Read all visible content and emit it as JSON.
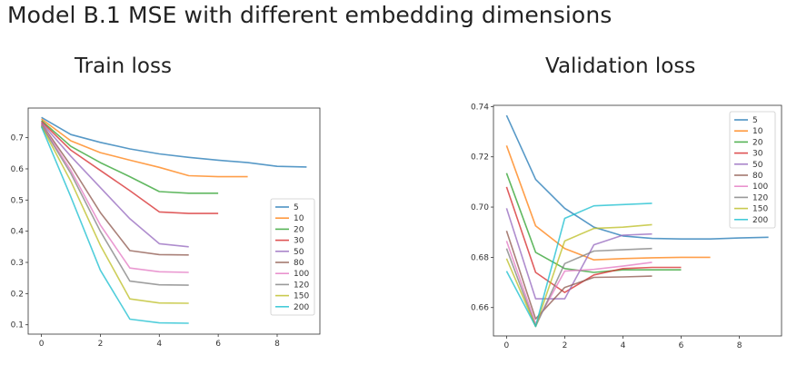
{
  "page_title": "Model B.1 MSE with different embedding dimensions",
  "chart_data": [
    {
      "type": "line",
      "title": "Train loss",
      "xlabel": "",
      "ylabel": "",
      "xlim": [
        -0.45,
        9.45
      ],
      "ylim": [
        0.07,
        0.795
      ],
      "xticks": [
        0,
        2,
        4,
        6,
        8
      ],
      "yticks": [
        0.1,
        0.2,
        0.3,
        0.4,
        0.5,
        0.6,
        0.7
      ],
      "legend_position": "lower-right",
      "series": [
        {
          "name": "5",
          "color": "#1f77b4",
          "x": [
            0,
            1,
            2,
            3,
            4,
            5,
            6,
            7,
            8,
            9
          ],
          "y": [
            0.765,
            0.71,
            0.685,
            0.664,
            0.648,
            0.637,
            0.628,
            0.62,
            0.608,
            0.606
          ]
        },
        {
          "name": "10",
          "color": "#ff7f0e",
          "x": [
            0,
            1,
            2,
            3,
            4,
            5,
            6,
            7
          ],
          "y": [
            0.76,
            0.69,
            0.652,
            0.628,
            0.605,
            0.578,
            0.575,
            0.575
          ]
        },
        {
          "name": "20",
          "color": "#2ca02c",
          "x": [
            0,
            1,
            2,
            3,
            4,
            5,
            6
          ],
          "y": [
            0.755,
            0.672,
            0.62,
            0.575,
            0.527,
            0.522,
            0.522
          ]
        },
        {
          "name": "30",
          "color": "#d62728",
          "x": [
            0,
            1,
            2,
            3,
            4,
            5,
            6
          ],
          "y": [
            0.752,
            0.66,
            0.595,
            0.53,
            0.462,
            0.457,
            0.457
          ]
        },
        {
          "name": "50",
          "color": "#9467bd",
          "x": [
            0,
            1,
            2,
            3,
            4,
            5
          ],
          "y": [
            0.748,
            0.64,
            0.54,
            0.44,
            0.36,
            0.35
          ]
        },
        {
          "name": "80",
          "color": "#8c564b",
          "x": [
            0,
            1,
            2,
            3,
            4,
            5
          ],
          "y": [
            0.745,
            0.61,
            0.46,
            0.338,
            0.325,
            0.324
          ]
        },
        {
          "name": "100",
          "color": "#e377c2",
          "x": [
            0,
            1,
            2,
            3,
            4,
            5
          ],
          "y": [
            0.742,
            0.595,
            0.42,
            0.282,
            0.27,
            0.268
          ]
        },
        {
          "name": "120",
          "color": "#7f7f7f",
          "x": [
            0,
            1,
            2,
            3,
            4,
            5
          ],
          "y": [
            0.74,
            0.585,
            0.4,
            0.24,
            0.228,
            0.227
          ]
        },
        {
          "name": "150",
          "color": "#bcbd22",
          "x": [
            0,
            1,
            2,
            3,
            4,
            5
          ],
          "y": [
            0.737,
            0.56,
            0.355,
            0.183,
            0.17,
            0.169
          ]
        },
        {
          "name": "200",
          "color": "#17becf",
          "x": [
            0,
            1,
            2,
            3,
            4,
            5
          ],
          "y": [
            0.735,
            0.51,
            0.275,
            0.118,
            0.106,
            0.105
          ]
        }
      ]
    },
    {
      "type": "line",
      "title": "Validation loss",
      "xlabel": "",
      "ylabel": "",
      "xlim": [
        -0.45,
        9.45
      ],
      "ylim": [
        0.6487,
        0.7405
      ],
      "xticks": [
        0,
        2,
        4,
        6,
        8
      ],
      "yticks": [
        0.66,
        0.68,
        0.7,
        0.72,
        0.74
      ],
      "legend_position": "upper-right",
      "series": [
        {
          "name": "5",
          "color": "#1f77b4",
          "x": [
            0,
            1,
            2,
            3,
            4,
            5,
            6,
            7,
            8,
            9
          ],
          "y": [
            0.7365,
            0.711,
            0.6995,
            0.692,
            0.6885,
            0.6875,
            0.6873,
            0.6873,
            0.6877,
            0.688
          ]
        },
        {
          "name": "10",
          "color": "#ff7f0e",
          "x": [
            0,
            1,
            2,
            3,
            4,
            5,
            6,
            7
          ],
          "y": [
            0.7245,
            0.6925,
            0.6835,
            0.679,
            0.6795,
            0.6798,
            0.68,
            0.68
          ]
        },
        {
          "name": "20",
          "color": "#2ca02c",
          "x": [
            0,
            1,
            2,
            3,
            4,
            5,
            6
          ],
          "y": [
            0.7135,
            0.682,
            0.6755,
            0.674,
            0.675,
            0.675,
            0.675
          ]
        },
        {
          "name": "30",
          "color": "#d62728",
          "x": [
            0,
            1,
            2,
            3,
            4,
            5,
            6
          ],
          "y": [
            0.708,
            0.674,
            0.666,
            0.673,
            0.6755,
            0.676,
            0.676
          ]
        },
        {
          "name": "50",
          "color": "#9467bd",
          "x": [
            0,
            1,
            2,
            3,
            4,
            5
          ],
          "y": [
            0.6995,
            0.6635,
            0.6635,
            0.685,
            0.6888,
            0.6893
          ]
        },
        {
          "name": "80",
          "color": "#8c564b",
          "x": [
            0,
            1,
            2,
            3,
            4,
            5
          ],
          "y": [
            0.6905,
            0.6555,
            0.668,
            0.672,
            0.6722,
            0.6725
          ]
        },
        {
          "name": "100",
          "color": "#e377c2",
          "x": [
            0,
            1,
            2,
            3,
            4,
            5
          ],
          "y": [
            0.6865,
            0.6535,
            0.6745,
            0.6752,
            0.6765,
            0.678
          ]
        },
        {
          "name": "120",
          "color": "#7f7f7f",
          "x": [
            0,
            1,
            2,
            3,
            4,
            5
          ],
          "y": [
            0.6835,
            0.6525,
            0.6775,
            0.6825,
            0.683,
            0.6835
          ]
        },
        {
          "name": "150",
          "color": "#bcbd22",
          "x": [
            0,
            1,
            2,
            3,
            4,
            5
          ],
          "y": [
            0.6795,
            0.6525,
            0.6865,
            0.6915,
            0.692,
            0.693
          ]
        },
        {
          "name": "200",
          "color": "#17becf",
          "x": [
            0,
            1,
            2,
            3,
            4,
            5
          ],
          "y": [
            0.6745,
            0.6525,
            0.6955,
            0.7005,
            0.701,
            0.7015
          ]
        }
      ]
    }
  ]
}
